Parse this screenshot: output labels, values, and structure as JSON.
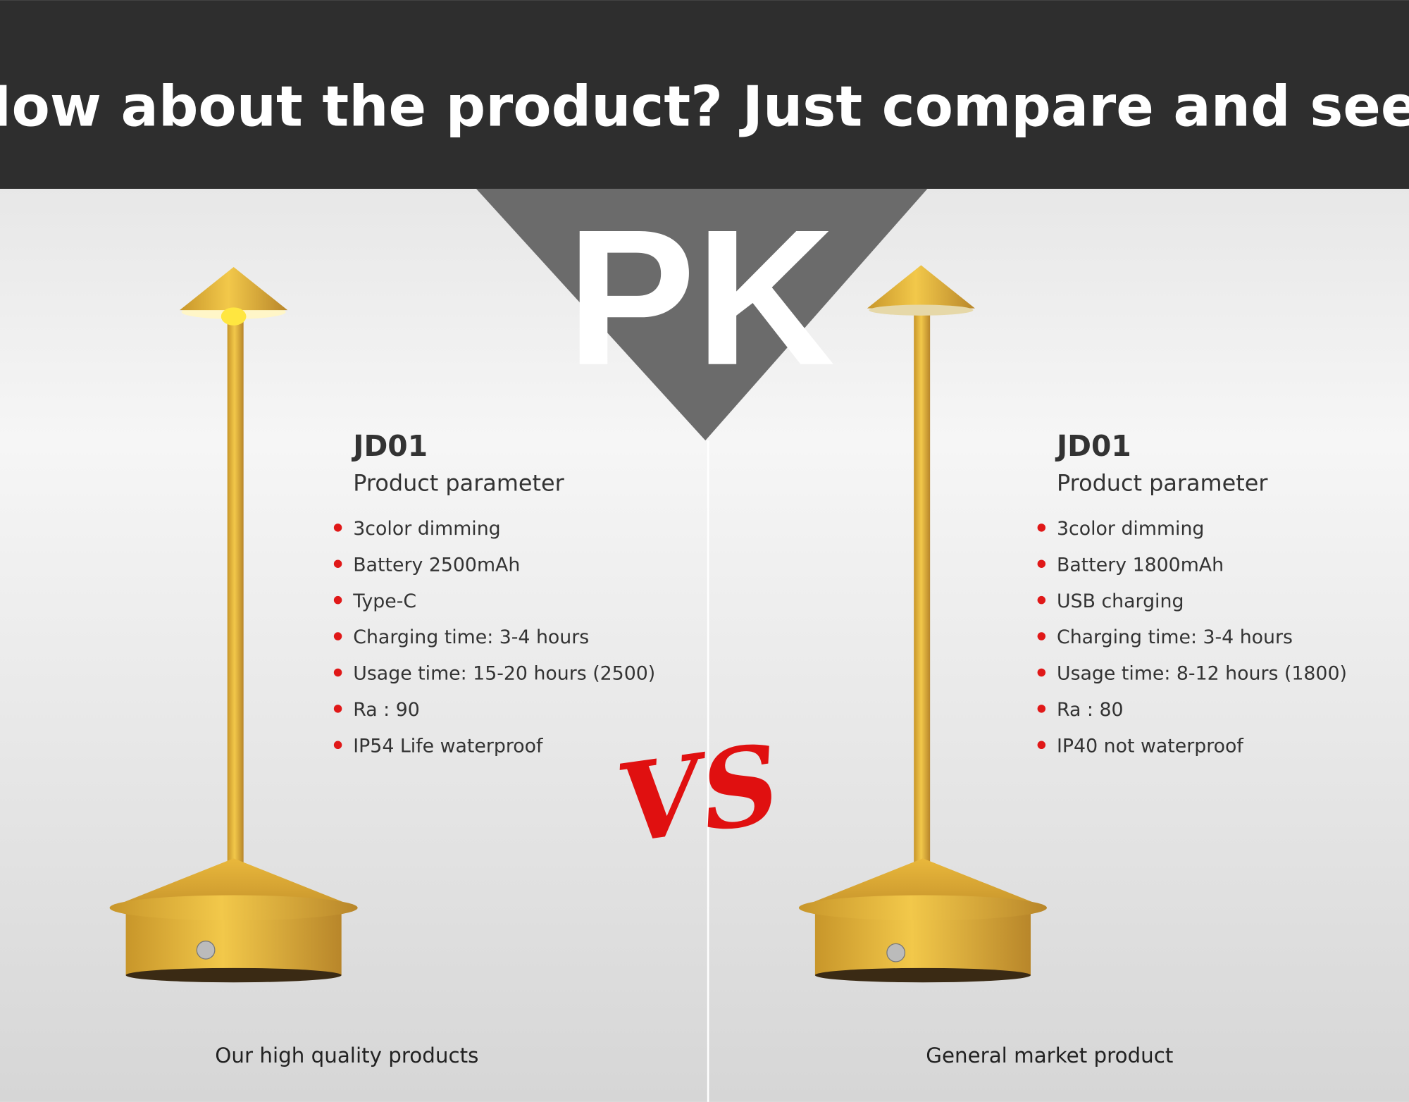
{
  "header": {
    "title": "How about the product? Just compare and see!"
  },
  "badge": "PK",
  "versus": "VS",
  "products": [
    {
      "model": "JD01",
      "subtitle": "Product parameter",
      "features": [
        "3color dimming",
        "Battery 2500mAh",
        "Type-C",
        "Charging time: 3-4 hours",
        "Usage time: 15-20 hours (2500)",
        "Ra : 90",
        "IP54 Life waterproof"
      ],
      "caption": "Our high quality products"
    },
    {
      "model": "JD01",
      "subtitle": "Product parameter",
      "features": [
        "3color dimming",
        "Battery 1800mAh",
        "USB charging",
        "Charging time: 3-4 hours",
        "Usage time: 8-12 hours (1800)",
        "Ra : 80",
        "IP40 not waterproof"
      ],
      "caption": "General market product"
    }
  ]
}
